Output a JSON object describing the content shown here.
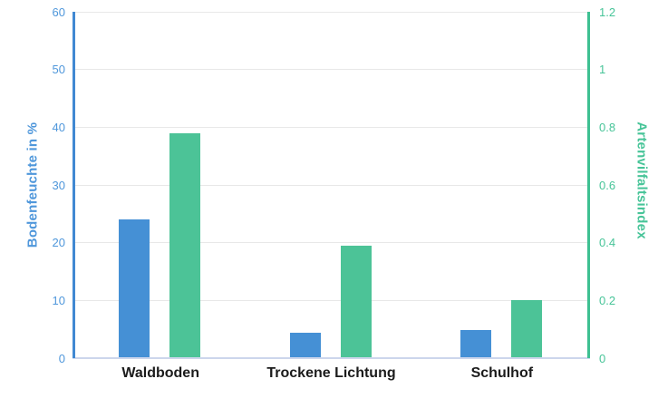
{
  "chart_data": {
    "type": "bar",
    "title": "",
    "legend": "none",
    "grid": {
      "show": true,
      "color": "#e8e8e8",
      "baseline_color": "#ccd6ec"
    },
    "categories": [
      "Waldboden",
      "Trockene Lichtung",
      "Schulhof"
    ],
    "series": [
      {
        "name": "Bodenfeuchte in %",
        "axis": "left",
        "color": "#4590d5",
        "values": [
          24,
          4.4,
          4.8
        ]
      },
      {
        "name": "Artenvilfaltsindex",
        "axis": "right",
        "color": "#4cc397",
        "values": [
          0.78,
          0.39,
          0.2
        ]
      }
    ],
    "axes": {
      "left": {
        "label": "Bodenfeuchte in %",
        "min": 0,
        "max": 60,
        "ticks": [
          "0",
          "10",
          "20",
          "30",
          "40",
          "50",
          "60"
        ],
        "text_color": "#4f97db",
        "line_color": "#4189d2"
      },
      "right": {
        "label": "Artenvilfaltsindex",
        "min": 0,
        "max": 1.2,
        "ticks": [
          "0",
          "0.2",
          "0.4",
          "0.6",
          "0.8",
          "1",
          "1.2"
        ],
        "text_color": "#47c498",
        "line_color": "#3ec092"
      }
    },
    "x_label_color": "#1b1b1b"
  }
}
